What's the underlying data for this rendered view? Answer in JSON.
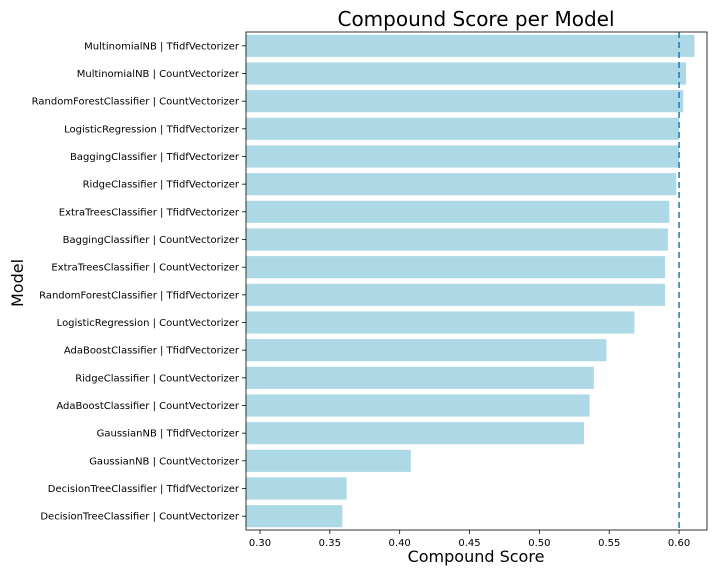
{
  "chart_data": {
    "type": "bar",
    "orientation": "horizontal",
    "title": "Compound  Score per Model",
    "xlabel": "Compound Score",
    "ylabel": "Model",
    "xlim": [
      0.29,
      0.62
    ],
    "xticks": [
      "0.30",
      "0.35",
      "0.40",
      "0.45",
      "0.50",
      "0.55",
      "0.60"
    ],
    "reference_line": {
      "x": 0.6,
      "style": "dashed",
      "color": "#1f77b4"
    },
    "bar_color": "#add8e6",
    "grid": false,
    "categories": [
      "MultinomialNB | TfidfVectorizer",
      "MultinomialNB | CountVectorizer",
      "RandomForestClassifier | CountVectorizer",
      "LogisticRegression | TfidfVectorizer",
      "BaggingClassifier | TfidfVectorizer",
      "RidgeClassifier | TfidfVectorizer",
      "ExtraTreesClassifier | TfidfVectorizer",
      "BaggingClassifier | CountVectorizer",
      "ExtraTreesClassifier | CountVectorizer",
      "RandomForestClassifier | TfidfVectorizer",
      "LogisticRegression | CountVectorizer",
      "AdaBoostClassifier | TfidfVectorizer",
      "RidgeClassifier | CountVectorizer",
      "AdaBoostClassifier | CountVectorizer",
      "GaussianNB | TfidfVectorizer",
      "GaussianNB | CountVectorizer",
      "DecisionTreeClassifier | TfidfVectorizer",
      "DecisionTreeClassifier | CountVectorizer"
    ],
    "values": [
      0.611,
      0.605,
      0.603,
      0.6,
      0.6,
      0.598,
      0.593,
      0.592,
      0.59,
      0.59,
      0.568,
      0.548,
      0.539,
      0.536,
      0.532,
      0.408,
      0.362,
      0.359
    ]
  }
}
